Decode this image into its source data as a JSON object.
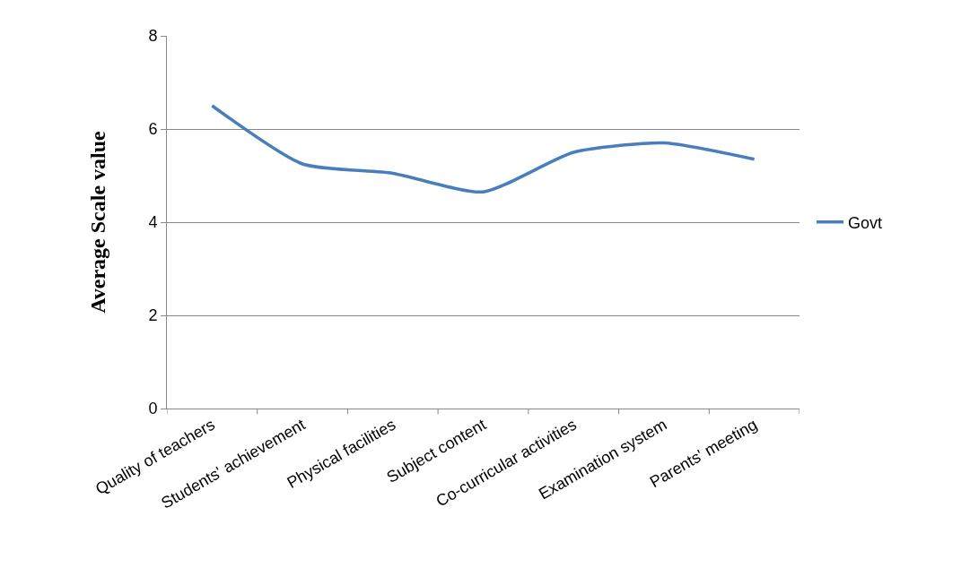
{
  "chart_data": {
    "type": "line",
    "ylabel": "Average Scale value",
    "categories": [
      "Quality of teachers",
      "Students' achievement",
      "Physical facilities",
      "Subject content",
      "Co-curricular activities",
      "Examination system",
      "Parents' meeting"
    ],
    "series": [
      {
        "name": "Govt",
        "color": "#4a7ebb",
        "values": [
          6.5,
          5.25,
          5.05,
          4.65,
          5.5,
          5.7,
          5.35
        ]
      }
    ],
    "ylim": [
      0,
      8
    ],
    "yticks": [
      0,
      2,
      4,
      6,
      8
    ],
    "grid": "y",
    "legend": "right",
    "marker": "none",
    "line_style": "solid"
  }
}
